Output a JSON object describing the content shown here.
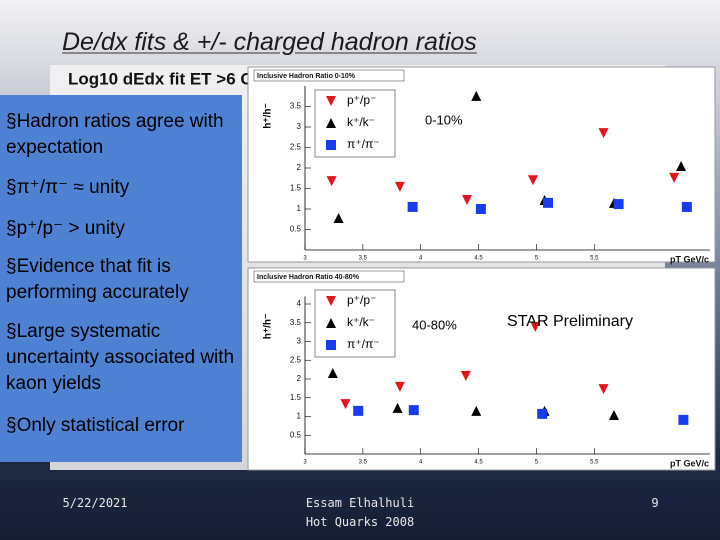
{
  "slide": {
    "title": "De/dx fits & +/- charged hadron ratios",
    "background_plot_title": "Log10 dEdx fit ET >6 G",
    "background_plot_fragment": "10",
    "bullets": [
      "Hadron ratios agree with expectation",
      "π⁺/π⁻ ≈ unity",
      "p⁺/p⁻ > unity",
      "Evidence that fit is performing accurately",
      "Large systematic uncertainty associated with kaon yields",
      "Only statistical error"
    ],
    "footer": {
      "date": "5/22/2021",
      "author": "Essam Elhalhuli",
      "event": "Hot Quarks 2008",
      "page": "9"
    }
  },
  "chart_data": [
    {
      "type": "scatter",
      "title": "Inclusive Hadron Ratio 0-10%",
      "label": "0-10%",
      "y_label": "h⁺/h⁻",
      "x_label": "pT GeV/c",
      "xlim": [
        3,
        6.5
      ],
      "ylim": [
        0,
        4
      ],
      "xticks": [
        3,
        3.5,
        4,
        4.5,
        5,
        5.5
      ],
      "yticks": [
        0.5,
        1,
        1.5,
        2,
        2.5,
        3,
        3.5
      ],
      "series": [
        {
          "name": "p⁺/p⁻",
          "color": "#e8141b",
          "marker": "triangle-down",
          "x": [
            3.23,
            3.82,
            4.4,
            4.97,
            5.58,
            6.19
          ],
          "values": [
            1.68,
            1.54,
            1.22,
            1.7,
            2.85,
            1.76
          ]
        },
        {
          "name": "k⁺/k⁻",
          "color": "#000000",
          "marker": "triangle-up",
          "x": [
            3.29,
            4.48,
            5.07,
            5.67,
            6.25
          ],
          "values": [
            0.78,
            3.76,
            1.22,
            1.15,
            2.05
          ]
        },
        {
          "name": "π⁺/π⁻",
          "color": "#1a3cf0",
          "marker": "square",
          "x": [
            3.93,
            4.52,
            5.1,
            5.71,
            6.3
          ],
          "values": [
            1.05,
            1.0,
            1.15,
            1.12,
            1.05
          ]
        }
      ]
    },
    {
      "type": "scatter",
      "title": "Inclusive Hadron Ratio 40-80%",
      "label": "40-80%",
      "y_label": "h⁺/h⁻",
      "x_label": "pT GeV/c",
      "annotation": "STAR Preliminary",
      "xlim": [
        3,
        6.5
      ],
      "ylim": [
        0,
        4.2
      ],
      "xticks": [
        3,
        3.5,
        4,
        4.5,
        5,
        5.5
      ],
      "yticks": [
        0.5,
        1,
        1.5,
        2,
        2.5,
        3,
        3.5,
        4
      ],
      "series": [
        {
          "name": "p⁺/p⁻",
          "color": "#e8141b",
          "marker": "triangle-down",
          "x": [
            3.35,
            3.82,
            4.39,
            4.99,
            5.58
          ],
          "values": [
            1.33,
            1.79,
            2.08,
            3.39,
            1.73
          ]
        },
        {
          "name": "k⁺/k⁻",
          "color": "#000000",
          "marker": "triangle-up",
          "x": [
            3.24,
            3.8,
            4.48,
            5.07,
            5.67
          ],
          "values": [
            2.16,
            1.23,
            1.15,
            1.15,
            1.04
          ]
        },
        {
          "name": "π⁺/π⁻",
          "color": "#1a3cf0",
          "marker": "square",
          "x": [
            3.46,
            3.94,
            5.05,
            6.27
          ],
          "values": [
            1.15,
            1.17,
            1.07,
            0.91
          ]
        }
      ]
    }
  ]
}
